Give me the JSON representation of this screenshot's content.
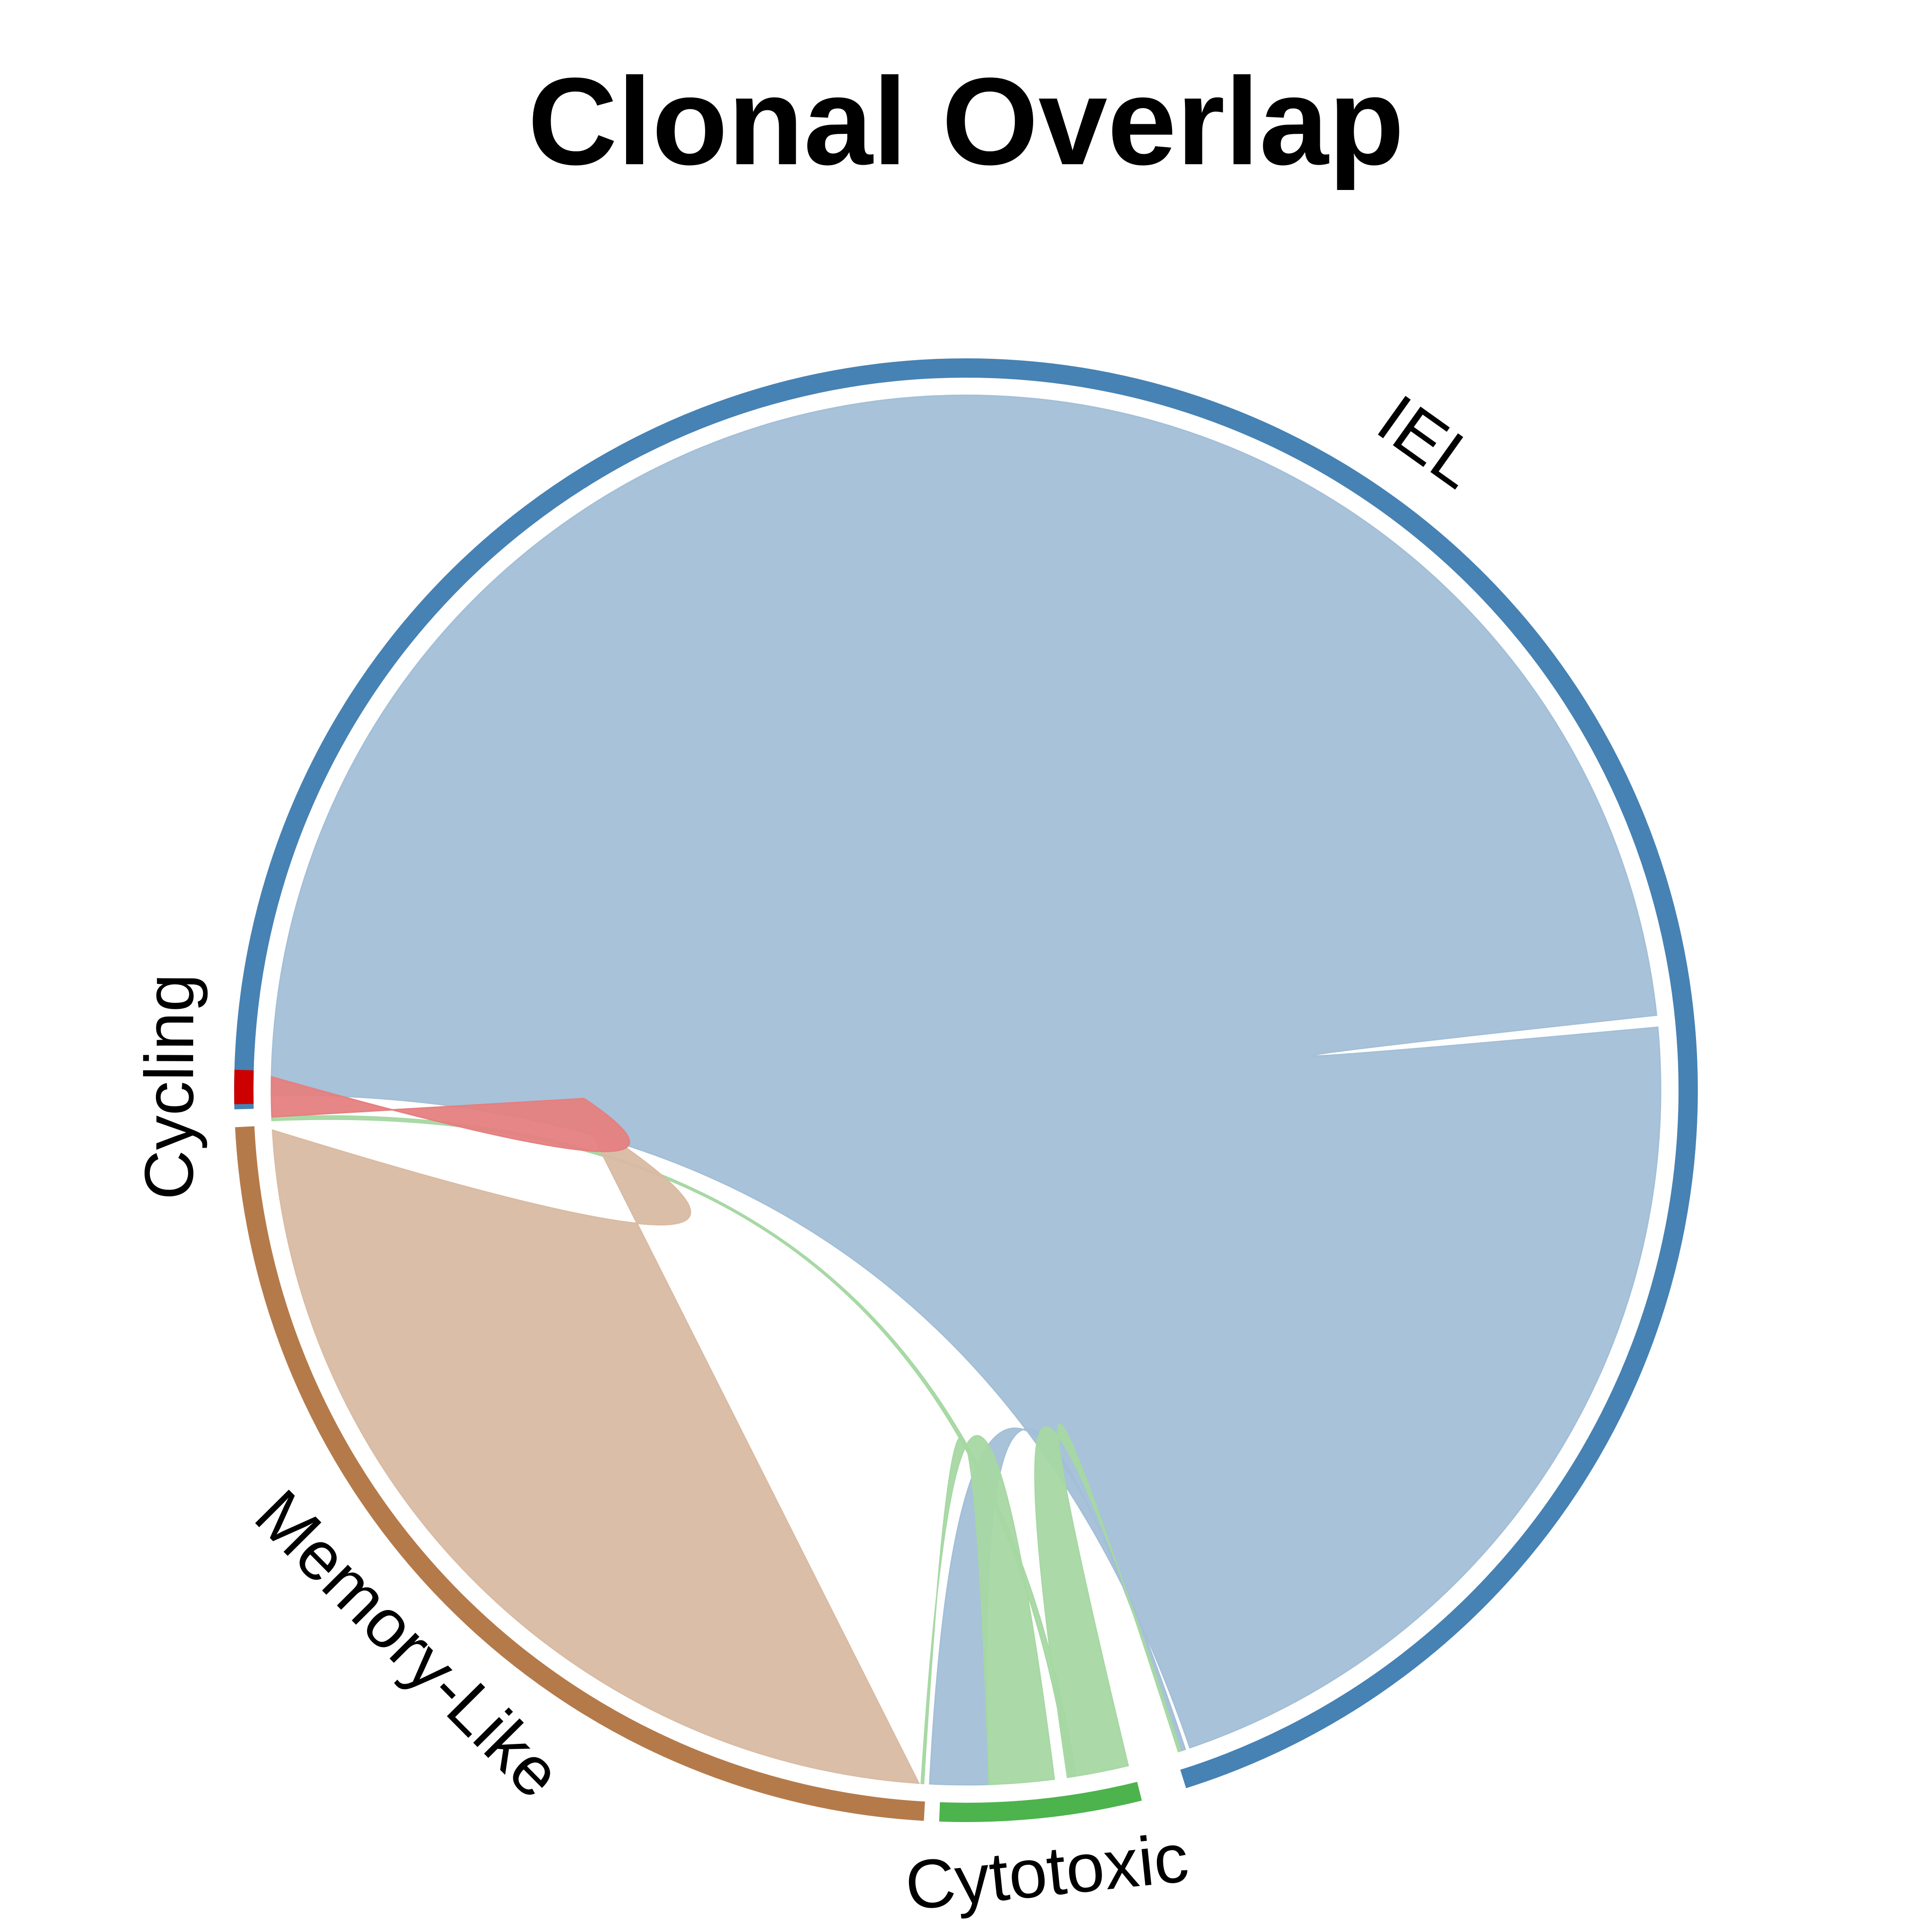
{
  "chart_data": {
    "type": "chord",
    "title": "Clonal Overlap",
    "sectors": [
      {
        "name": "IEL",
        "color": "#4682B4",
        "fill": "#A3BFD7",
        "start": 0,
        "end": 254
      },
      {
        "name": "Cytotoxic",
        "color": "#4DB34D",
        "fill": "#A6D8A3",
        "start": 257.6,
        "end": 273.6
      },
      {
        "name": "Memory-Like",
        "color": "#B57A4A",
        "fill": "#D9BBA3",
        "start": 274.8,
        "end": 358.6
      },
      {
        "name": "Cycling",
        "color": "#CC0000",
        "fill": "#E57F7F",
        "start": 360.4,
        "end": 363.1
      }
    ],
    "links": [
      {
        "name": "IEL self",
        "color": "#A3BFD7",
        "a": [
          1.1,
          175.3
        ],
        "b": [
          176.3,
          252.7
        ],
        "mode": "ribbon"
      },
      {
        "name": "IEL - Cytotoxic",
        "color": "#A3BFD7",
        "a": [
          253.1,
          253.5
        ],
        "b": [
          269.6,
          274.5
        ],
        "mode": "ribbon"
      },
      {
        "name": "Cytotoxic - IEL",
        "color": "#A6D8A3",
        "a": [
          258.0,
          263.1
        ],
        "b": [
          253.5,
          253.7
        ],
        "mode": "ribbon"
      },
      {
        "name": "Cytotoxic - Memory-Like",
        "color": "#A6D8A3",
        "a": [
          264.2,
          269.6
        ],
        "b": [
          275.0,
          275.2
        ],
        "mode": "ribbon"
      },
      {
        "name": "Cytotoxic - Cycling",
        "color": "#A6D8A3",
        "a": [
          262.4,
          262.9
        ],
        "b": [
          359.0,
          359.3
        ],
        "mode": "ribbon"
      },
      {
        "name": "Memory-Like self",
        "color": "#D9BBA3",
        "a": [
          275.4,
          358.2
        ],
        "b": [
          359.0,
          359.0
        ],
        "mode": "body"
      },
      {
        "name": "Cycling - IEL",
        "color": "#E57F7F",
        "a": [
          359.3,
          362.6
        ],
        "b": [
          361.0,
          363.5
        ],
        "mode": "body"
      }
    ]
  }
}
